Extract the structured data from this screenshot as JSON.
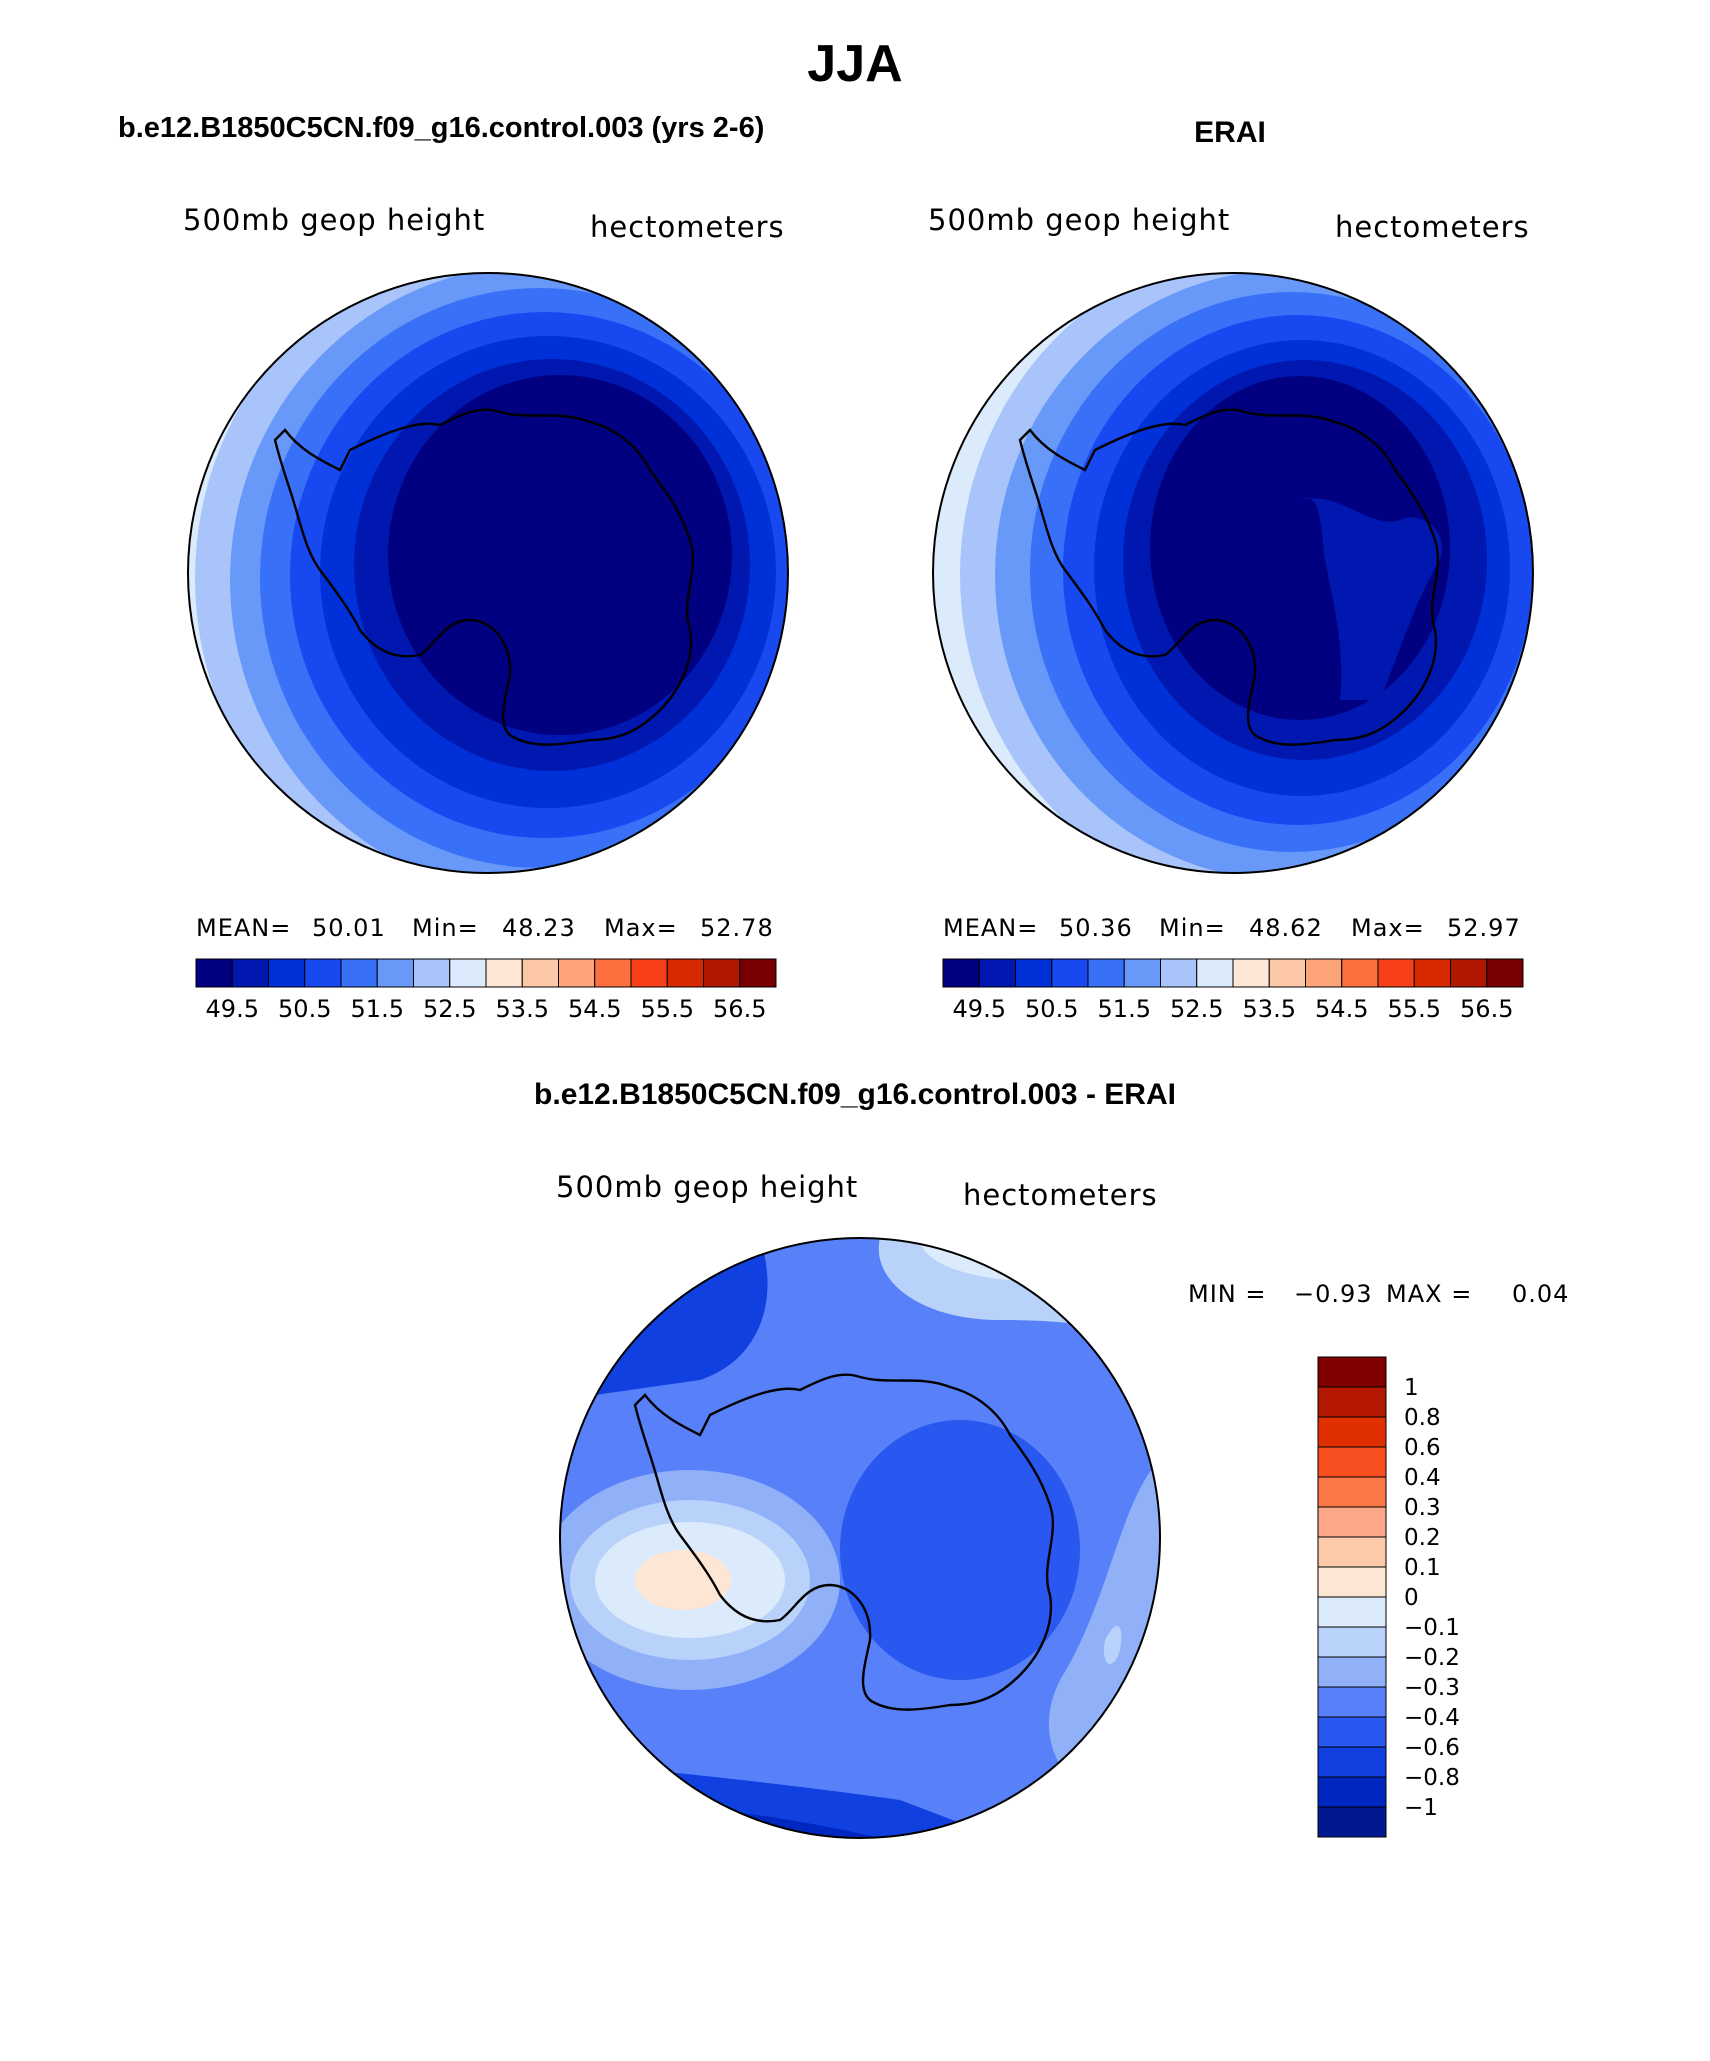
{
  "page_title": "JJA",
  "panels": [
    {
      "case_title": "b.e12.B1850C5CN.f09_g16.control.003 (yrs 2-6)",
      "field_label": "500mb geop height",
      "units_label": "hectometers",
      "stats": {
        "mean_label": "MEAN=",
        "mean": "50.01",
        "min_label": "Min=",
        "min": "48.23",
        "max_label": "Max=",
        "max": "52.78"
      }
    },
    {
      "case_title": "ERAI",
      "field_label": "500mb geop height",
      "units_label": "hectometers",
      "stats": {
        "mean_label": "MEAN=",
        "mean": "50.36",
        "min_label": "Min=",
        "min": "48.62",
        "max_label": "Max=",
        "max": "52.97"
      }
    }
  ],
  "mean_colorbar": {
    "colors": [
      "#000080",
      "#0018b0",
      "#0030d8",
      "#1848f0",
      "#3870f8",
      "#6898f8",
      "#a8c4fa",
      "#dcebfc",
      "#fde6d4",
      "#fcc8a8",
      "#fca478",
      "#fc7040",
      "#f84018",
      "#d82800",
      "#b01800",
      "#780000"
    ],
    "labels": [
      "49.5",
      "50.5",
      "51.5",
      "52.5",
      "53.5",
      "54.5",
      "55.5",
      "56.5"
    ]
  },
  "diff_panel": {
    "title": "b.e12.B1850C5CN.f09_g16.control.003 - ERAI",
    "field_label": "500mb geop height",
    "units_label": "hectometers",
    "min_label": "MIN =",
    "min_value": "−0.93",
    "max_label": "MAX =",
    "max_value": "0.04"
  },
  "diff_colorbar": {
    "colors_top_to_bottom": [
      "#800000",
      "#b41800",
      "#e03000",
      "#f85020",
      "#fc7848",
      "#fca888",
      "#fccaa8",
      "#fde6d4",
      "#dcebfc",
      "#b8d2fa",
      "#90b0f8",
      "#5880f8",
      "#2858f0",
      "#1040e0",
      "#0028c0",
      "#001890"
    ],
    "labels_top_to_bottom": [
      "1",
      "0.8",
      "0.6",
      "0.4",
      "0.3",
      "0.2",
      "0.1",
      "0",
      "−0.1",
      "−0.2",
      "−0.3",
      "−0.4",
      "−0.6",
      "−0.8",
      "−1"
    ]
  }
}
